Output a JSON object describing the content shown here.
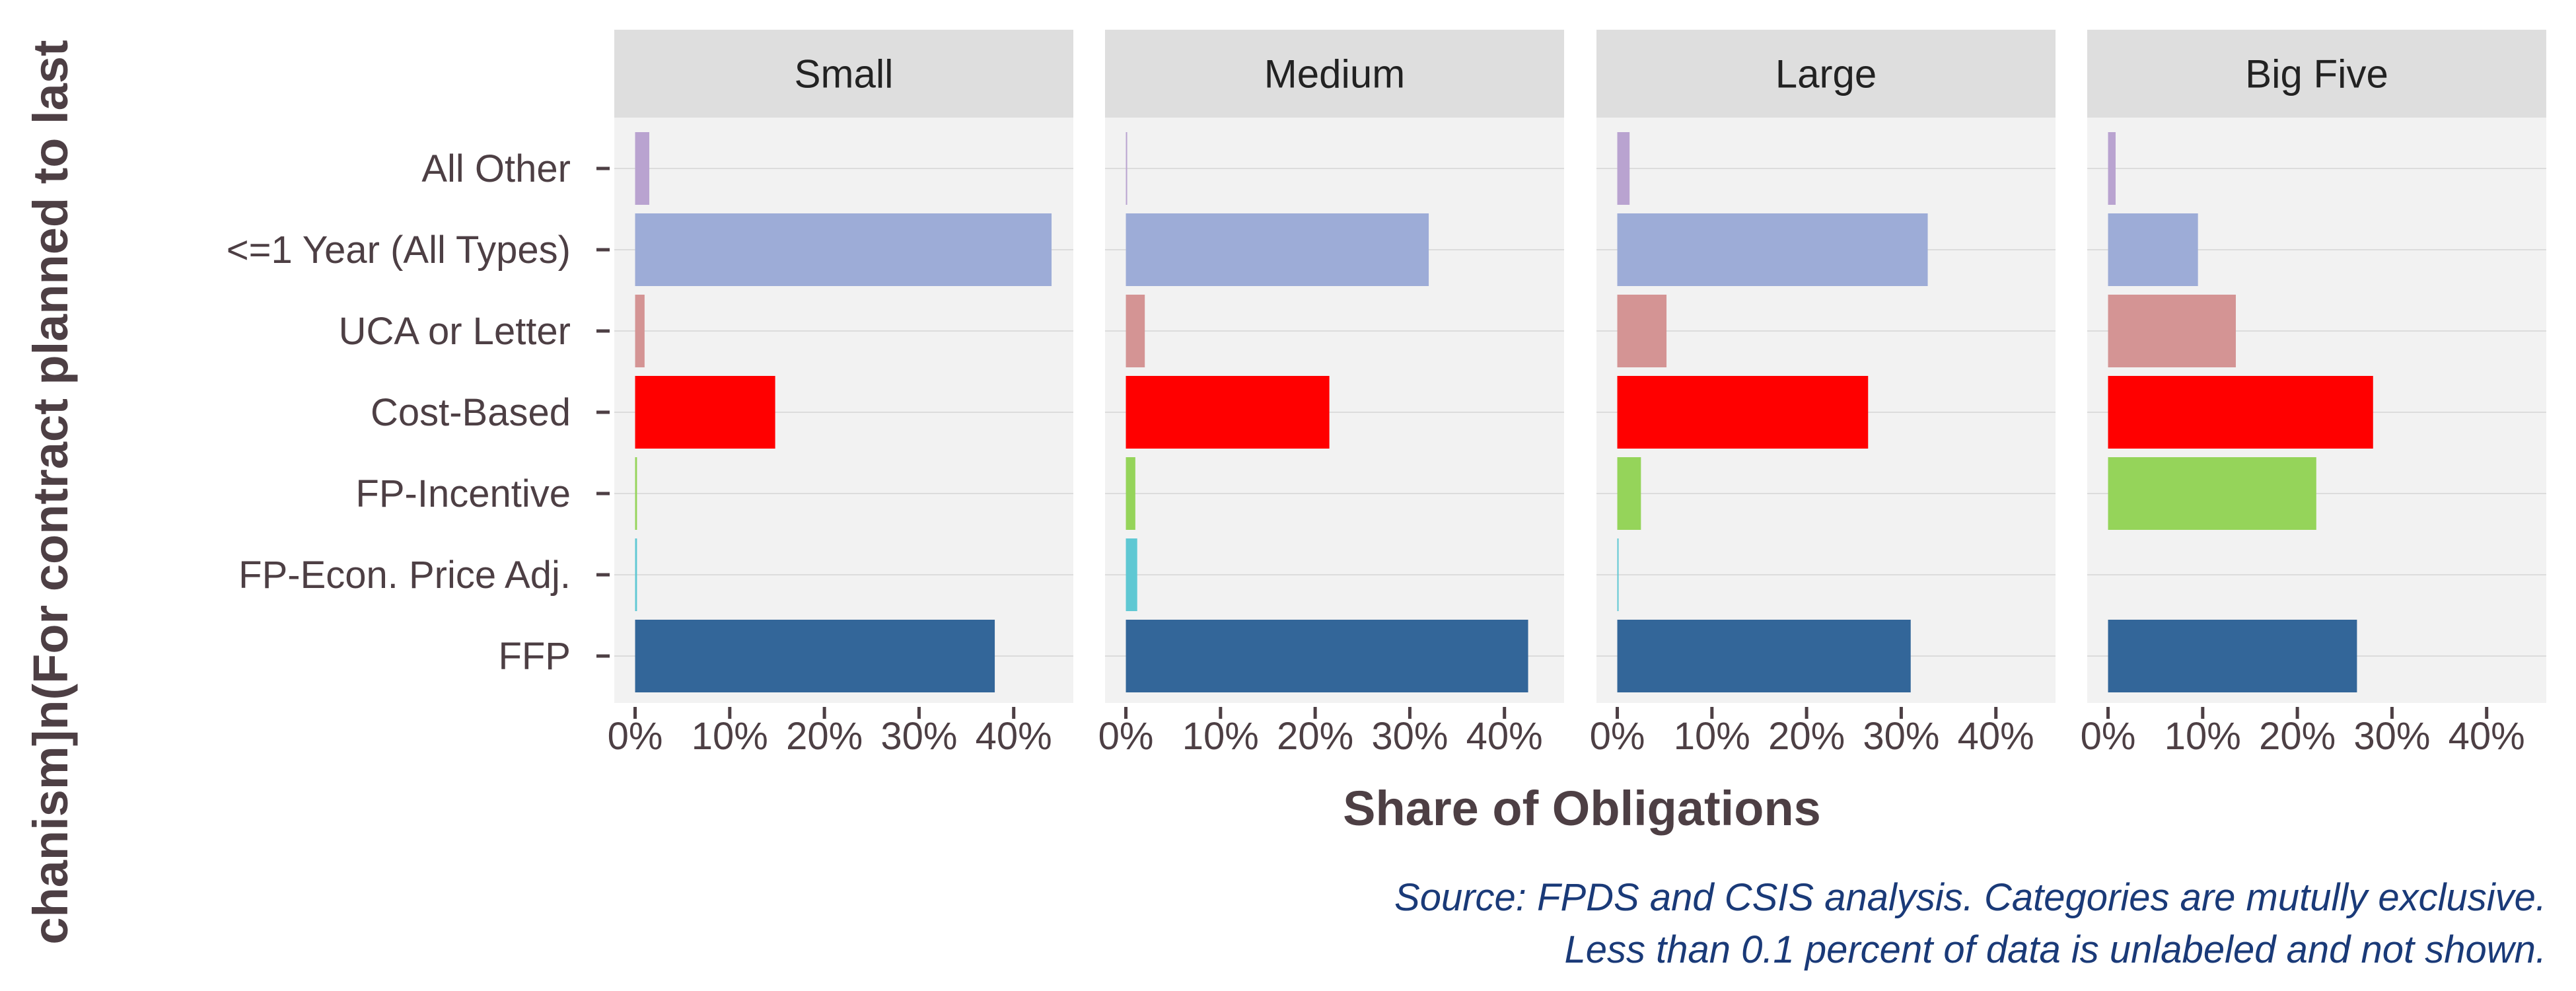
{
  "chart_data": {
    "type": "bar",
    "orientation": "horizontal",
    "facets": [
      "Small",
      "Medium",
      "Large",
      "Big Five"
    ],
    "categories": [
      "All Other",
      "<=1 Year (All Types)",
      "UCA or Letter",
      "Cost-Based",
      "FP-Incentive",
      "FP-Econ. Price Adj.",
      "FFP"
    ],
    "category_colors": [
      "#b9a3d0",
      "#9dacd7",
      "#d49494",
      "#ff0000",
      "#95d45a",
      "#5fc8d3",
      "#336699"
    ],
    "values": {
      "Small": [
        1.5,
        44.0,
        1.0,
        14.8,
        0.2,
        0.2,
        38.0
      ],
      "Medium": [
        0.1,
        32.0,
        2.0,
        21.5,
        1.0,
        1.2,
        42.5
      ],
      "Large": [
        1.3,
        32.8,
        5.2,
        26.5,
        2.5,
        0.1,
        31.0
      ],
      "Big Five": [
        0.8,
        9.5,
        13.5,
        28.0,
        22.0,
        0.0,
        26.3
      ]
    },
    "x_ticks": [
      "0%",
      "10%",
      "20%",
      "30%",
      "40%"
    ],
    "x_tick_values": [
      0,
      10,
      20,
      30,
      40
    ],
    "xlim": [
      -2.2,
      46.3
    ],
    "xlabel": "Share of Obligations",
    "ylabel": "chanism]n(For contract planned to last",
    "grid": true,
    "legend": "none"
  },
  "caption": {
    "line1": "Source: FPDS and CSIS analysis. Categories are mutully exclusive.",
    "line2": "Less than 0.1 percent of data is unlabeled and not shown."
  }
}
